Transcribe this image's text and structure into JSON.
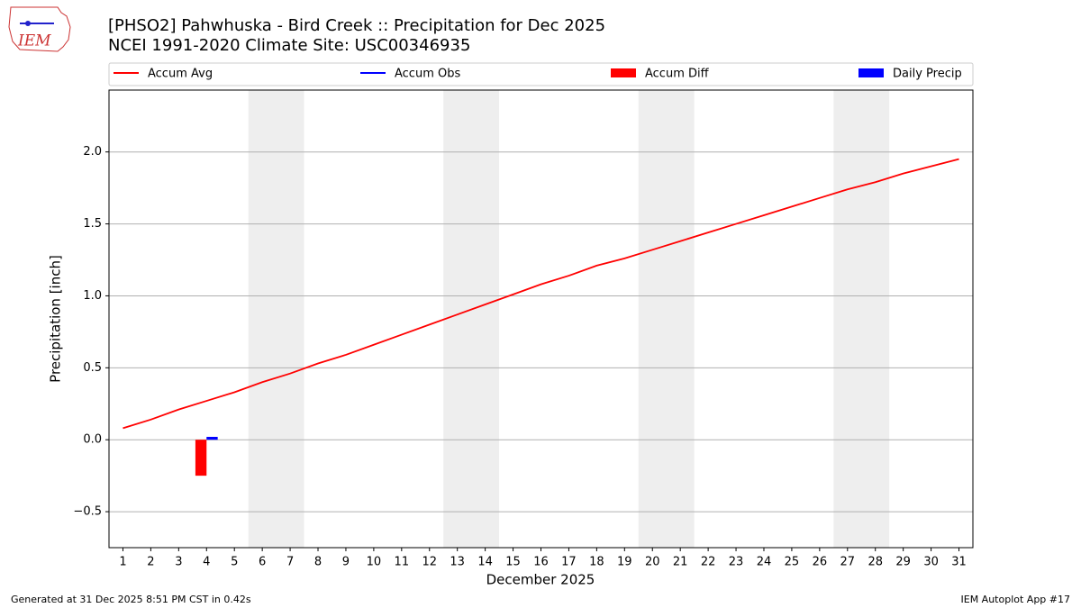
{
  "logo_text": "IEM",
  "footer_left": "Generated at 31 Dec 2025 8:51 PM CST in 0.42s",
  "footer_right": "IEM Autoplot App #17",
  "chart_data": {
    "type": "line",
    "title": "[PHSO2] Pahwhuska - Bird Creek :: Precipitation for Dec 2025",
    "subtitle": "NCEI 1991-2020 Climate Site: USC00346935",
    "x_label": "December 2025",
    "y_label": "Precipitation [inch]",
    "x": [
      1,
      2,
      3,
      4,
      5,
      6,
      7,
      8,
      9,
      10,
      11,
      12,
      13,
      14,
      15,
      16,
      17,
      18,
      19,
      20,
      21,
      22,
      23,
      24,
      25,
      26,
      27,
      28,
      29,
      30,
      31
    ],
    "xlim": [
      0.5,
      31.5
    ],
    "xticks": [
      1,
      2,
      3,
      4,
      5,
      6,
      7,
      8,
      9,
      10,
      11,
      12,
      13,
      14,
      15,
      16,
      17,
      18,
      19,
      20,
      21,
      22,
      23,
      24,
      25,
      26,
      27,
      28,
      29,
      30,
      31
    ],
    "ylim": [
      -0.75,
      2.43
    ],
    "yticks": [
      {
        "value": -0.5,
        "label": "−0.5"
      },
      {
        "value": 0,
        "label": "0.0"
      },
      0.5,
      {
        "value": 1,
        "label": "1.0"
      },
      1.5,
      {
        "value": 2,
        "label": "2.0"
      }
    ],
    "grid": true,
    "shaded_spans": [
      [
        5.5,
        7.5
      ],
      [
        12.5,
        14.5
      ],
      [
        19.5,
        21.5
      ],
      [
        26.5,
        28.5
      ]
    ],
    "series": [
      {
        "name": "Accum Avg",
        "kind": "line",
        "color": "#ff0000",
        "values": [
          0.08,
          0.14,
          0.21,
          0.27,
          0.33,
          0.4,
          0.46,
          0.53,
          0.59,
          0.66,
          0.73,
          0.8,
          0.87,
          0.94,
          1.01,
          1.08,
          1.14,
          1.21,
          1.26,
          1.32,
          1.38,
          1.44,
          1.5,
          1.56,
          1.62,
          1.68,
          1.74,
          1.79,
          1.85,
          1.9,
          1.95
        ]
      },
      {
        "name": "Accum Obs",
        "kind": "line",
        "color": "#0000ff",
        "values": [
          null,
          null,
          null,
          0.02,
          null,
          null,
          null,
          null,
          null,
          null,
          null,
          null,
          null,
          null,
          null,
          null,
          null,
          null,
          null,
          null,
          null,
          null,
          null,
          null,
          null,
          null,
          null,
          null,
          null,
          null,
          null
        ]
      },
      {
        "name": "Accum Diff",
        "kind": "bar",
        "color": "#ff0000",
        "values": [
          null,
          null,
          null,
          -0.25,
          null,
          null,
          null,
          null,
          null,
          null,
          null,
          null,
          null,
          null,
          null,
          null,
          null,
          null,
          null,
          null,
          null,
          null,
          null,
          null,
          null,
          null,
          null,
          null,
          null,
          null,
          null
        ]
      },
      {
        "name": "Daily Precip",
        "kind": "bar",
        "color": "#0000ff",
        "values": [
          null,
          null,
          null,
          0.02,
          null,
          null,
          null,
          null,
          null,
          null,
          null,
          null,
          null,
          null,
          null,
          null,
          null,
          null,
          null,
          null,
          null,
          null,
          null,
          null,
          null,
          null,
          null,
          null,
          null,
          null,
          null
        ]
      }
    ]
  }
}
